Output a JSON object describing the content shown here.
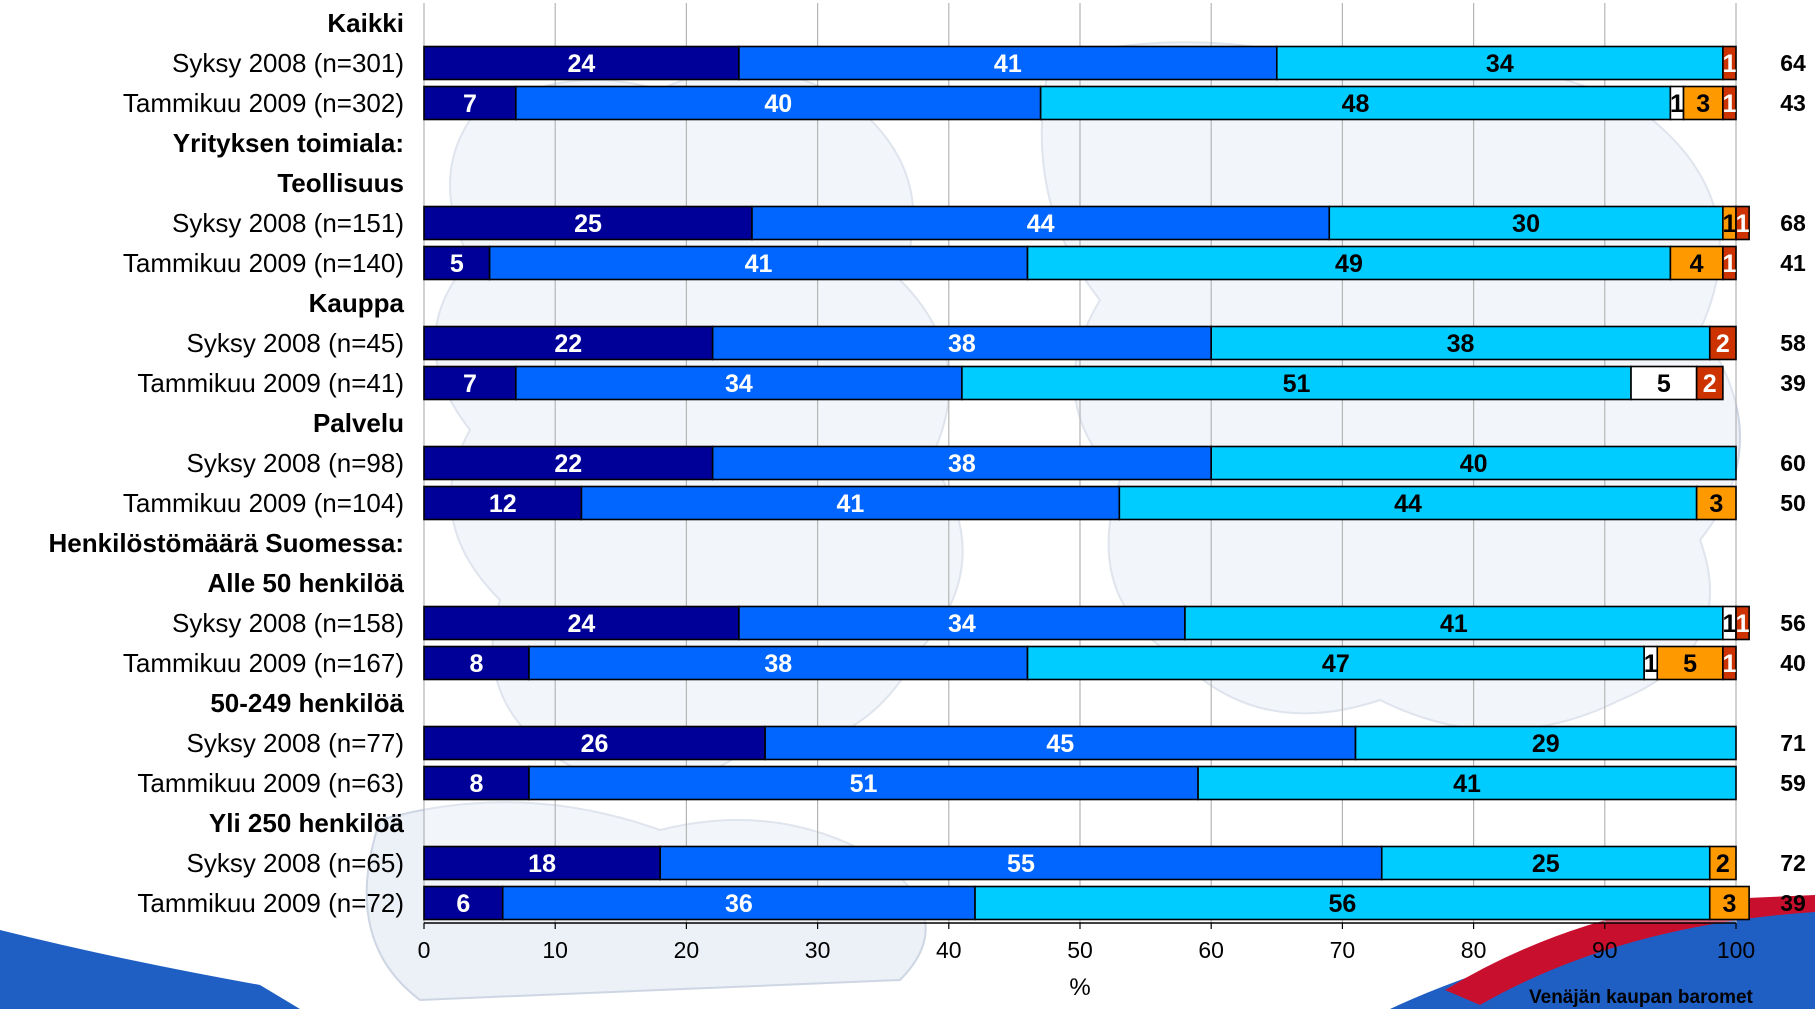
{
  "chart_data": {
    "type": "bar",
    "orientation": "horizontal",
    "stacked": true,
    "xlabel": "%",
    "xlim": [
      0,
      100
    ],
    "xticks": [
      0,
      10,
      20,
      30,
      40,
      50,
      60,
      70,
      80,
      90,
      100
    ],
    "grid": true,
    "legend": "none",
    "segment_colors": [
      "#000099",
      "#0066ff",
      "#00ccff",
      "#ffffff",
      "#ff9900",
      "#cc3300"
    ],
    "segment_label_colors": [
      "#ffffff",
      "#ffffff",
      "#000000",
      "#000000",
      "#000000",
      "#ffffff"
    ],
    "rows": [
      {
        "label": "Kaikki",
        "header": true
      },
      {
        "label": "Syksy 2008 (n=301)",
        "values": [
          24,
          41,
          34,
          0,
          0,
          1
        ],
        "labels": [
          "24",
          "41",
          "34",
          "",
          "",
          "1"
        ],
        "right": "64"
      },
      {
        "label": "Tammikuu 2009 (n=302)",
        "values": [
          7,
          40,
          48,
          1,
          3,
          1
        ],
        "labels": [
          "7",
          "40",
          "48",
          "1",
          "3",
          "1"
        ],
        "right": "43"
      },
      {
        "label": "Yrityksen toimiala:",
        "header": true
      },
      {
        "label": "Teollisuus",
        "header": true
      },
      {
        "label": "Syksy 2008 (n=151)",
        "values": [
          25,
          44,
          30,
          0,
          1,
          1
        ],
        "labels": [
          "25",
          "44",
          "30",
          "",
          "1",
          "1"
        ],
        "right": "68"
      },
      {
        "label": "Tammikuu 2009 (n=140)",
        "values": [
          5,
          41,
          49,
          0,
          4,
          1
        ],
        "labels": [
          "5",
          "41",
          "49",
          "",
          "4",
          "1"
        ],
        "right": "41"
      },
      {
        "label": "Kauppa",
        "header": true
      },
      {
        "label": "Syksy 2008 (n=45)",
        "values": [
          22,
          38,
          38,
          0,
          0,
          2
        ],
        "labels": [
          "22",
          "38",
          "38",
          "",
          "",
          "2"
        ],
        "right": "58"
      },
      {
        "label": "Tammikuu 2009 (n=41)",
        "values": [
          7,
          34,
          51,
          5,
          0,
          2
        ],
        "labels": [
          "7",
          "34",
          "51",
          "5",
          "",
          "2"
        ],
        "right": "39"
      },
      {
        "label": "Palvelu",
        "header": true
      },
      {
        "label": "Syksy 2008 (n=98)",
        "values": [
          22,
          38,
          40,
          0,
          0,
          0
        ],
        "labels": [
          "22",
          "38",
          "40",
          "",
          "",
          ""
        ],
        "right": "60"
      },
      {
        "label": "Tammikuu 2009 (n=104)",
        "values": [
          12,
          41,
          44,
          0,
          3,
          0
        ],
        "labels": [
          "12",
          "41",
          "44",
          "",
          "3",
          ""
        ],
        "right": "50"
      },
      {
        "label": "Henkilöstömäärä Suomessa:",
        "header": true
      },
      {
        "label": "Alle 50 henkilöä",
        "header": true
      },
      {
        "label": "Syksy 2008 (n=158)",
        "values": [
          24,
          34,
          41,
          1,
          0,
          1
        ],
        "labels": [
          "24",
          "34",
          "41",
          "1",
          "",
          "1"
        ],
        "right": "56"
      },
      {
        "label": "Tammikuu 2009 (n=167)",
        "values": [
          8,
          38,
          47,
          1,
          5,
          1
        ],
        "labels": [
          "8",
          "38",
          "47",
          "1",
          "5",
          "1"
        ],
        "right": "40"
      },
      {
        "label": "50-249 henkilöä",
        "header": true
      },
      {
        "label": "Syksy 2008 (n=77)",
        "values": [
          26,
          45,
          29,
          0,
          0,
          0
        ],
        "labels": [
          "26",
          "45",
          "29",
          "",
          "",
          ""
        ],
        "right": "71"
      },
      {
        "label": "Tammikuu 2009 (n=63)",
        "values": [
          8,
          51,
          41,
          0,
          0,
          0
        ],
        "labels": [
          "8",
          "51",
          "41",
          "",
          "",
          ""
        ],
        "right": "59"
      },
      {
        "label": "Yli 250 henkilöä",
        "header": true
      },
      {
        "label": "Syksy 2008 (n=65)",
        "values": [
          18,
          55,
          25,
          0,
          2,
          0
        ],
        "labels": [
          "18",
          "55",
          "25",
          "",
          "2",
          ""
        ],
        "right": "72"
      },
      {
        "label": "Tammikuu 2009 (n=72)",
        "values": [
          6,
          36,
          56,
          0,
          3,
          0
        ],
        "labels": [
          "6",
          "36",
          "56",
          "",
          "3",
          ""
        ],
        "right": "39"
      }
    ]
  },
  "footer": {
    "source_text": "Venäjän kaupan baromet"
  },
  "colors": {
    "background_map": "#e9eef6",
    "map_lines": "#c6d0e0",
    "gridline": "#b5b5b5",
    "bar_outline": "#000000",
    "swoosh_blue": "#1f5fc4",
    "swoosh_red": "#c8102e"
  }
}
